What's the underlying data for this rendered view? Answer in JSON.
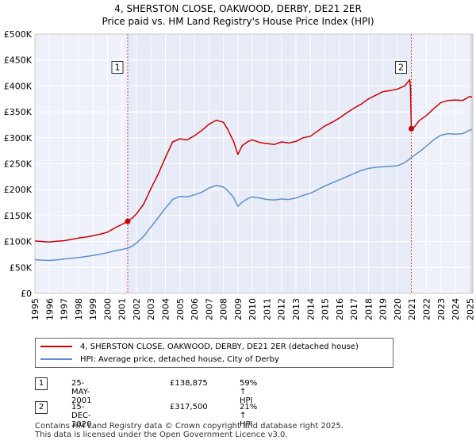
{
  "title_line1": "4, SHERSTON CLOSE, OAKWOOD, DERBY, DE21 2ER",
  "title_line2": "Price paid vs. HM Land Registry's House Price Index (HPI)",
  "chart_data": {
    "type": "line",
    "ylim": [
      0,
      500000
    ],
    "xlim": [
      1995,
      2025.2
    ],
    "y_ticks": [
      {
        "value": 0,
        "label": "£0"
      },
      {
        "value": 50000,
        "label": "£50K"
      },
      {
        "value": 100000,
        "label": "£100K"
      },
      {
        "value": 150000,
        "label": "£150K"
      },
      {
        "value": 200000,
        "label": "£200K"
      },
      {
        "value": 250000,
        "label": "£250K"
      },
      {
        "value": 300000,
        "label": "£300K"
      },
      {
        "value": 350000,
        "label": "£350K"
      },
      {
        "value": 400000,
        "label": "£400K"
      },
      {
        "value": 450000,
        "label": "£450K"
      },
      {
        "value": 500000,
        "label": "£500K"
      }
    ],
    "x_ticks": [
      1995,
      1996,
      1997,
      1998,
      1999,
      2000,
      2001,
      2002,
      2003,
      2004,
      2005,
      2006,
      2007,
      2008,
      2009,
      2010,
      2011,
      2012,
      2013,
      2014,
      2015,
      2016,
      2017,
      2018,
      2019,
      2020,
      2021,
      2022,
      2023,
      2024,
      2025
    ],
    "shaded_period": [
      2001.4,
      2020.96
    ],
    "series": [
      {
        "name": "4, SHERSTON CLOSE, OAKWOOD, DERBY, DE21 2ER (detached house)",
        "color": "#cc0000",
        "points": [
          [
            1995.0,
            101000
          ],
          [
            1995.5,
            100000
          ],
          [
            1996.0,
            99000
          ],
          [
            1996.5,
            100500
          ],
          [
            1997.0,
            101500
          ],
          [
            1997.5,
            104000
          ],
          [
            1998.0,
            106500
          ],
          [
            1998.5,
            108500
          ],
          [
            1999.0,
            111000
          ],
          [
            1999.5,
            114000
          ],
          [
            2000.0,
            118000
          ],
          [
            2000.5,
            126000
          ],
          [
            2001.0,
            133000
          ],
          [
            2001.4,
            138875
          ],
          [
            2001.7,
            145000
          ],
          [
            2002.0,
            153000
          ],
          [
            2002.5,
            172000
          ],
          [
            2003.0,
            202000
          ],
          [
            2003.5,
            230000
          ],
          [
            2004.0,
            262000
          ],
          [
            2004.5,
            292000
          ],
          [
            2005.0,
            298000
          ],
          [
            2005.5,
            296000
          ],
          [
            2006.0,
            304000
          ],
          [
            2006.5,
            314000
          ],
          [
            2007.0,
            326000
          ],
          [
            2007.5,
            334000
          ],
          [
            2008.0,
            330000
          ],
          [
            2008.3,
            316000
          ],
          [
            2008.7,
            293000
          ],
          [
            2009.0,
            268000
          ],
          [
            2009.3,
            285000
          ],
          [
            2009.7,
            293000
          ],
          [
            2010.0,
            296000
          ],
          [
            2010.5,
            291000
          ],
          [
            2011.0,
            289000
          ],
          [
            2011.5,
            287000
          ],
          [
            2012.0,
            292000
          ],
          [
            2012.5,
            290000
          ],
          [
            2013.0,
            293000
          ],
          [
            2013.5,
            300000
          ],
          [
            2014.0,
            303000
          ],
          [
            2014.5,
            313000
          ],
          [
            2015.0,
            323000
          ],
          [
            2015.5,
            330000
          ],
          [
            2016.0,
            338000
          ],
          [
            2016.5,
            348000
          ],
          [
            2017.0,
            357000
          ],
          [
            2017.5,
            365000
          ],
          [
            2018.0,
            375000
          ],
          [
            2018.5,
            382000
          ],
          [
            2019.0,
            389000
          ],
          [
            2019.5,
            391000
          ],
          [
            2020.0,
            394000
          ],
          [
            2020.5,
            400000
          ],
          [
            2020.85,
            412000
          ],
          [
            2020.9,
            395000
          ],
          [
            2020.96,
            317500
          ],
          [
            2021.2,
            322000
          ],
          [
            2021.5,
            333000
          ],
          [
            2022.0,
            343000
          ],
          [
            2022.5,
            356000
          ],
          [
            2023.0,
            368000
          ],
          [
            2023.5,
            372000
          ],
          [
            2024.0,
            373000
          ],
          [
            2024.5,
            372000
          ],
          [
            2025.0,
            380000
          ],
          [
            2025.15,
            378000
          ]
        ]
      },
      {
        "name": "HPI: Average price, detached house, City of Derby",
        "color": "#5b8fd0",
        "points": [
          [
            1995.0,
            65000
          ],
          [
            1995.5,
            64000
          ],
          [
            1996.0,
            63500
          ],
          [
            1996.5,
            64500
          ],
          [
            1997.0,
            66000
          ],
          [
            1997.5,
            67500
          ],
          [
            1998.0,
            69000
          ],
          [
            1998.5,
            71000
          ],
          [
            1999.0,
            73000
          ],
          [
            1999.5,
            75500
          ],
          [
            2000.0,
            78500
          ],
          [
            2000.5,
            82000
          ],
          [
            2001.0,
            84500
          ],
          [
            2001.4,
            87000
          ],
          [
            2001.7,
            91000
          ],
          [
            2002.0,
            97000
          ],
          [
            2002.5,
            110000
          ],
          [
            2003.0,
            128000
          ],
          [
            2003.5,
            146000
          ],
          [
            2004.0,
            164000
          ],
          [
            2004.5,
            181000
          ],
          [
            2005.0,
            187000
          ],
          [
            2005.5,
            186000
          ],
          [
            2006.0,
            190000
          ],
          [
            2006.5,
            195000
          ],
          [
            2007.0,
            203000
          ],
          [
            2007.5,
            208000
          ],
          [
            2008.0,
            205000
          ],
          [
            2008.3,
            198000
          ],
          [
            2008.7,
            185000
          ],
          [
            2009.0,
            168000
          ],
          [
            2009.3,
            176000
          ],
          [
            2009.7,
            183000
          ],
          [
            2010.0,
            186000
          ],
          [
            2010.5,
            184000
          ],
          [
            2011.0,
            181000
          ],
          [
            2011.5,
            180000
          ],
          [
            2012.0,
            182000
          ],
          [
            2012.5,
            181000
          ],
          [
            2013.0,
            184000
          ],
          [
            2013.5,
            189000
          ],
          [
            2014.0,
            193000
          ],
          [
            2014.5,
            200000
          ],
          [
            2015.0,
            207000
          ],
          [
            2015.5,
            213000
          ],
          [
            2016.0,
            219000
          ],
          [
            2016.5,
            225000
          ],
          [
            2017.0,
            231000
          ],
          [
            2017.5,
            237000
          ],
          [
            2018.0,
            241000
          ],
          [
            2018.5,
            243000
          ],
          [
            2019.0,
            244000
          ],
          [
            2019.5,
            245000
          ],
          [
            2020.0,
            246000
          ],
          [
            2020.5,
            252000
          ],
          [
            2020.96,
            262000
          ],
          [
            2021.5,
            273000
          ],
          [
            2022.0,
            284000
          ],
          [
            2022.5,
            296000
          ],
          [
            2023.0,
            305000
          ],
          [
            2023.5,
            308000
          ],
          [
            2024.0,
            307000
          ],
          [
            2024.5,
            308000
          ],
          [
            2025.0,
            315000
          ],
          [
            2025.15,
            316000
          ]
        ]
      }
    ],
    "markers": [
      {
        "label": "1",
        "x": 2001.4,
        "y": 138875,
        "box_y": 435000
      },
      {
        "label": "2",
        "x": 2020.96,
        "y": 317500,
        "box_y": 435000
      }
    ]
  },
  "legend": {
    "items": [
      {
        "label": "4, SHERSTON CLOSE, OAKWOOD, DERBY, DE21 2ER (detached house)",
        "color": "#cc0000"
      },
      {
        "label": "HPI: Average price, detached house, City of Derby",
        "color": "#5b8fd0"
      }
    ]
  },
  "annotations": [
    {
      "num": "1",
      "date": "25-MAY-2001",
      "price": "£138,875",
      "hpi": "59% ↑ HPI"
    },
    {
      "num": "2",
      "date": "15-DEC-2020",
      "price": "£317,500",
      "hpi": "21% ↑ HPI"
    }
  ],
  "footer": {
    "line1": "Contains HM Land Registry data © Crown copyright and database right 2025.",
    "line2": "This data is licensed under the Open Government Licence v3.0."
  }
}
